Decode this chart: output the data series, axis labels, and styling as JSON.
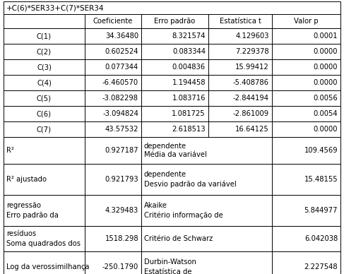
{
  "title_line": "+C(6)*SER33+C(7)*SER34",
  "header": [
    "",
    "Coeficiente",
    "Erro padrão",
    "Estatística t",
    "Valor p"
  ],
  "coef_rows": [
    [
      "C(1)",
      "34.36480",
      "8.321574",
      "4.129603",
      "0.0001"
    ],
    [
      "C(2)",
      "0.602524",
      "0.083344",
      "7.229378",
      "0.0000"
    ],
    [
      "C(3)",
      "0.077344",
      "0.004836",
      "15.99412",
      "0.0000"
    ],
    [
      "C(4)",
      "-6.460570",
      "1.194458",
      "-5.408786",
      "0.0000"
    ],
    [
      "C(5)",
      "-3.082298",
      "1.083716",
      "-2.844194",
      "0.0056"
    ],
    [
      "C(6)",
      "-3.094824",
      "1.081725",
      "-2.861009",
      "0.0054"
    ],
    [
      "C(7)",
      "43.57532",
      "2.618513",
      "16.64125",
      "0.0000"
    ]
  ],
  "stat_rows": [
    {
      "left_label": "R²",
      "left_label_super": false,
      "left_value": "0.927187",
      "right_label_lines": [
        "Média da variável",
        "dependente"
      ],
      "right_value": "109.4569"
    },
    {
      "left_label": "R² ajustado",
      "left_label_super": false,
      "left_value": "0.921793",
      "right_label_lines": [
        "Desvio padrão da variável",
        "dependente"
      ],
      "right_value": "15.48155"
    },
    {
      "left_label": "Erro padrão da\nregressão",
      "left_label_super": false,
      "left_value": "4.329483",
      "right_label_lines": [
        "Critério informação de",
        "Akaike"
      ],
      "right_value": "5.844977"
    },
    {
      "left_label": "Soma quadrados dos\nresíduos",
      "left_label_super": false,
      "left_value": "1518.298",
      "right_label_lines": [
        "Critério de Schwarz"
      ],
      "right_value": "6.042038"
    },
    {
      "left_label": "Log da verossimilhança",
      "left_label_super": false,
      "left_value": "-250.1790",
      "right_label_lines": [
        "Estatística de",
        "Durbin-Watson"
      ],
      "right_value": "2.227548"
    }
  ],
  "bg_color": "#ffffff",
  "font_size": 7.2,
  "title_font_size": 7.5
}
